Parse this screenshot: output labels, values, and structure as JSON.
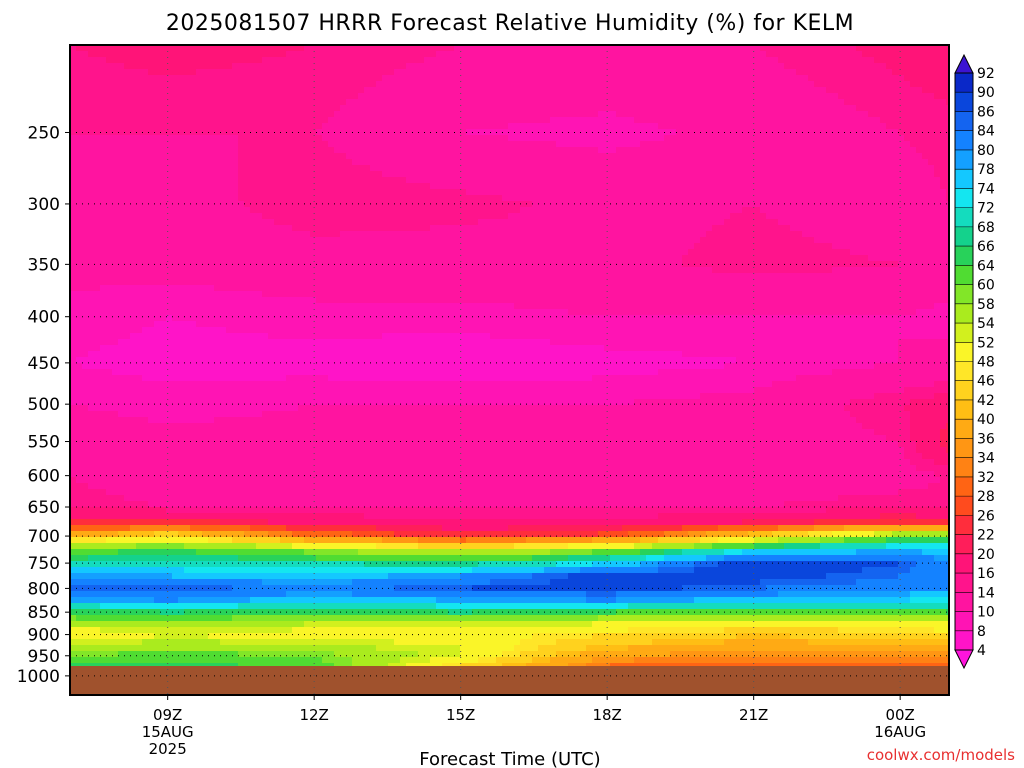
{
  "chart_data": {
    "type": "heatmap",
    "title": "2025081507 HRRR Forecast Relative Humidity (%) for KELM",
    "xlabel": "Forecast Time (UTC)",
    "ylabel": "",
    "credit": "coolwx.com/models",
    "y_scale": "log",
    "ylim": [
      1050,
      200
    ],
    "xlim": [
      7,
      25
    ],
    "y_ticks": [
      250,
      300,
      350,
      400,
      450,
      500,
      550,
      600,
      650,
      700,
      750,
      800,
      850,
      900,
      950,
      1000
    ],
    "x_ticks": [
      {
        "x": 9,
        "lines": [
          "09Z",
          "15AUG",
          "2025"
        ]
      },
      {
        "x": 12,
        "lines": [
          "12Z"
        ]
      },
      {
        "x": 15,
        "lines": [
          "15Z"
        ]
      },
      {
        "x": 18,
        "lines": [
          "18Z"
        ]
      },
      {
        "x": 21,
        "lines": [
          "21Z"
        ]
      },
      {
        "x": 24,
        "lines": [
          "00Z",
          "16AUG"
        ]
      }
    ],
    "grid": true,
    "surface_pressure": 975,
    "colorbar": {
      "levels": [
        4,
        8,
        10,
        14,
        16,
        20,
        22,
        26,
        28,
        32,
        34,
        36,
        40,
        42,
        46,
        48,
        52,
        54,
        58,
        60,
        64,
        66,
        68,
        72,
        74,
        78,
        80,
        84,
        86,
        90,
        92
      ],
      "colors": [
        "#ff14c8",
        "#ff14b4",
        "#ff14a0",
        "#ff148c",
        "#ff1478",
        "#ff1e5a",
        "#ff2d3c",
        "#ff4b1e",
        "#ff6414",
        "#ff8214",
        "#ff9614",
        "#ffaa14",
        "#ffbe14",
        "#ffd21e",
        "#ffe628",
        "#faf528",
        "#d2f01e",
        "#aaeb1e",
        "#82e628",
        "#50dc32",
        "#28d25a",
        "#14d28c",
        "#14dcbe",
        "#14e6f0",
        "#14c8ff",
        "#14a0ff",
        "#1482ff",
        "#1464f0",
        "#0a46dc",
        "#0a28c8"
      ],
      "under_color": "#ff14dc",
      "over_color": "#3c14d2"
    },
    "profiles_x": [
      7,
      9,
      12,
      15,
      18,
      21,
      24,
      25
    ],
    "profiles": [
      {
        "p": 200,
        "rh": [
          16,
          17,
          16,
          14,
          13,
          14,
          17,
          18
        ]
      },
      {
        "p": 250,
        "rh": [
          14,
          14,
          14,
          10,
          9,
          11,
          14,
          15
        ]
      },
      {
        "p": 300,
        "rh": [
          13,
          12,
          16,
          15,
          13,
          14,
          12,
          14
        ]
      },
      {
        "p": 350,
        "rh": [
          11,
          11,
          12,
          12,
          13,
          15,
          14,
          12
        ]
      },
      {
        "p": 400,
        "rh": [
          9,
          8,
          9,
          9,
          10,
          10,
          10,
          9
        ]
      },
      {
        "p": 450,
        "rh": [
          8,
          7,
          7,
          6,
          7,
          8,
          10,
          11
        ]
      },
      {
        "p": 500,
        "rh": [
          10,
          9,
          10,
          10,
          10,
          11,
          16,
          18
        ]
      },
      {
        "p": 550,
        "rh": [
          12,
          11,
          11,
          11,
          11,
          12,
          14,
          22
        ]
      },
      {
        "p": 600,
        "rh": [
          14,
          12,
          12,
          11,
          11,
          12,
          13,
          14
        ]
      },
      {
        "p": 650,
        "rh": [
          15,
          14,
          14,
          14,
          14,
          14,
          15,
          15
        ]
      },
      {
        "p": 675,
        "rh": [
          22,
          24,
          18,
          16,
          16,
          20,
          24,
          22
        ]
      },
      {
        "p": 700,
        "rh": [
          40,
          46,
          32,
          24,
          28,
          44,
          60,
          62
        ]
      },
      {
        "p": 725,
        "rh": [
          62,
          64,
          58,
          52,
          58,
          72,
          78,
          76
        ]
      },
      {
        "p": 750,
        "rh": [
          68,
          70,
          68,
          66,
          74,
          90,
          86,
          80
        ]
      },
      {
        "p": 775,
        "rh": [
          80,
          78,
          76,
          80,
          88,
          88,
          84,
          82
        ]
      },
      {
        "p": 800,
        "rh": [
          86,
          86,
          82,
          86,
          88,
          84,
          82,
          80
        ]
      },
      {
        "p": 825,
        "rh": [
          78,
          80,
          76,
          78,
          80,
          76,
          74,
          72
        ]
      },
      {
        "p": 850,
        "rh": [
          64,
          66,
          64,
          66,
          64,
          60,
          62,
          64
        ]
      },
      {
        "p": 875,
        "rh": [
          56,
          56,
          54,
          54,
          52,
          50,
          50,
          52
        ]
      },
      {
        "p": 900,
        "rh": [
          48,
          52,
          50,
          50,
          46,
          42,
          44,
          46
        ]
      },
      {
        "p": 925,
        "rh": [
          54,
          56,
          54,
          52,
          42,
          38,
          40,
          40
        ]
      },
      {
        "p": 950,
        "rh": [
          60,
          62,
          60,
          52,
          36,
          34,
          34,
          34
        ]
      },
      {
        "p": 975,
        "rh": [
          64,
          66,
          62,
          46,
          32,
          30,
          30,
          30
        ]
      }
    ]
  }
}
